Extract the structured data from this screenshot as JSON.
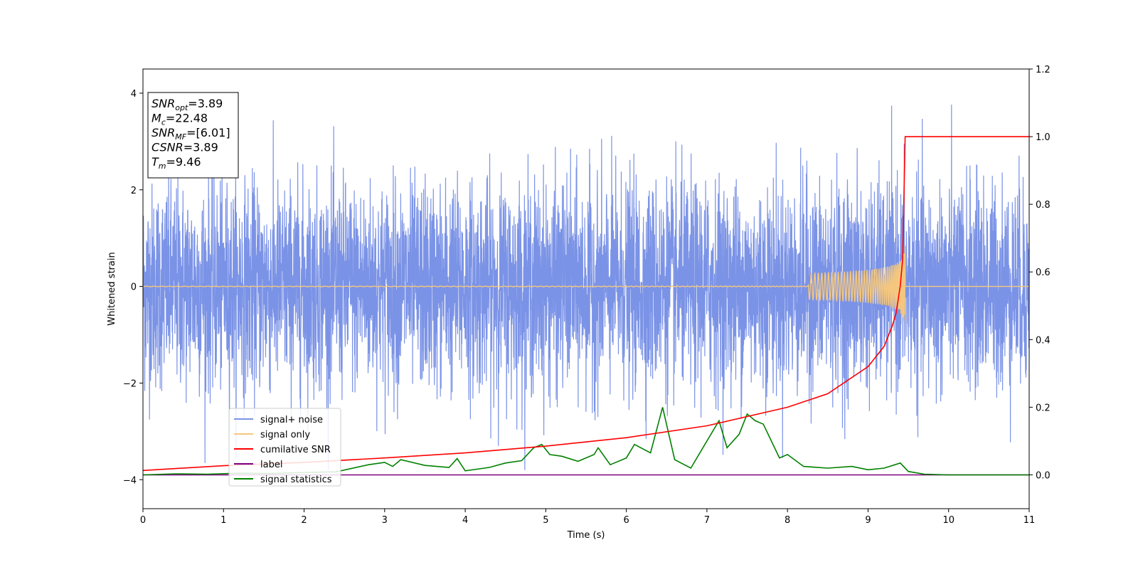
{
  "chart_data": {
    "type": "line",
    "title": "",
    "xlabel": "Time (s)",
    "ylabel": "Whitened strain",
    "xlim": [
      0,
      11
    ],
    "ylim": [
      -4.6,
      4.5
    ],
    "y2lim": [
      -0.1,
      1.2
    ],
    "x_ticks": [
      "0",
      "1",
      "2",
      "3",
      "4",
      "5",
      "6",
      "7",
      "8",
      "9",
      "10",
      "11"
    ],
    "y_ticks": [
      "−4",
      "−2",
      "0",
      "2",
      "4"
    ],
    "y2_ticks": [
      "0.0",
      "0.2",
      "0.4",
      "0.6",
      "0.8",
      "1.0",
      "1.2"
    ],
    "grid": false,
    "legend_position": "lower-left",
    "info_box": [
      {
        "name": "SNR",
        "sub": "opt",
        "value": "=3.89"
      },
      {
        "name": "M",
        "sub": "c",
        "value": "=22.48"
      },
      {
        "name": "SNR",
        "sub": "MF",
        "value": "=[6.01]"
      },
      {
        "name": "CSNR",
        "sub": "",
        "value": "=3.89"
      },
      {
        "name": "T",
        "sub": "m",
        "value": "=9.46"
      }
    ],
    "series": [
      {
        "name": "signal+ noise",
        "color": "#7b93e6",
        "axis": "left",
        "description_values": {
          "band_min": -2.0,
          "band_max": 2.0,
          "peak_max": 4.1,
          "peak_min": -3.8
        }
      },
      {
        "name": "signal only",
        "color": "#f5c77e",
        "axis": "left",
        "merger_time": 9.46,
        "peak_amplitude": 0.9
      },
      {
        "name": "cumilative SNR",
        "color": "#ff0000",
        "axis": "right",
        "x": [
          0,
          1,
          2,
          3,
          4,
          5,
          6,
          7,
          8,
          8.5,
          9,
          9.2,
          9.3,
          9.35,
          9.4,
          9.43,
          9.46,
          11
        ],
        "y": [
          0.013,
          0.027,
          0.037,
          0.05,
          0.065,
          0.085,
          0.11,
          0.145,
          0.2,
          0.24,
          0.32,
          0.38,
          0.44,
          0.48,
          0.56,
          0.64,
          1.0,
          1.0
        ]
      },
      {
        "name": "label",
        "color": "#800080",
        "axis": "right",
        "x": [
          0,
          11
        ],
        "y": [
          0.0,
          0.0
        ]
      },
      {
        "name": "signal statistics",
        "color": "#008000",
        "axis": "right",
        "x": [
          0,
          0.4,
          0.8,
          1.2,
          1.6,
          2.0,
          2.4,
          2.8,
          3.0,
          3.1,
          3.2,
          3.5,
          3.8,
          3.9,
          4.0,
          4.3,
          4.5,
          4.7,
          4.85,
          4.95,
          5.05,
          5.2,
          5.4,
          5.6,
          5.65,
          5.8,
          6.0,
          6.1,
          6.3,
          6.45,
          6.6,
          6.8,
          7.0,
          7.15,
          7.25,
          7.4,
          7.5,
          7.6,
          7.7,
          7.9,
          8.0,
          8.2,
          8.5,
          8.8,
          9.0,
          9.2,
          9.4,
          9.5,
          9.7,
          10.0,
          10.5,
          11
        ],
        "y": [
          0.0,
          0.003,
          0.002,
          0.005,
          0.004,
          0.007,
          0.009,
          0.03,
          0.037,
          0.025,
          0.045,
          0.028,
          0.022,
          0.048,
          0.012,
          0.022,
          0.035,
          0.042,
          0.08,
          0.09,
          0.06,
          0.055,
          0.04,
          0.06,
          0.08,
          0.03,
          0.05,
          0.09,
          0.065,
          0.2,
          0.045,
          0.02,
          0.1,
          0.16,
          0.08,
          0.12,
          0.18,
          0.16,
          0.15,
          0.05,
          0.06,
          0.025,
          0.02,
          0.025,
          0.015,
          0.02,
          0.035,
          0.01,
          0.002,
          0.0,
          0.0,
          0.0
        ]
      }
    ]
  }
}
